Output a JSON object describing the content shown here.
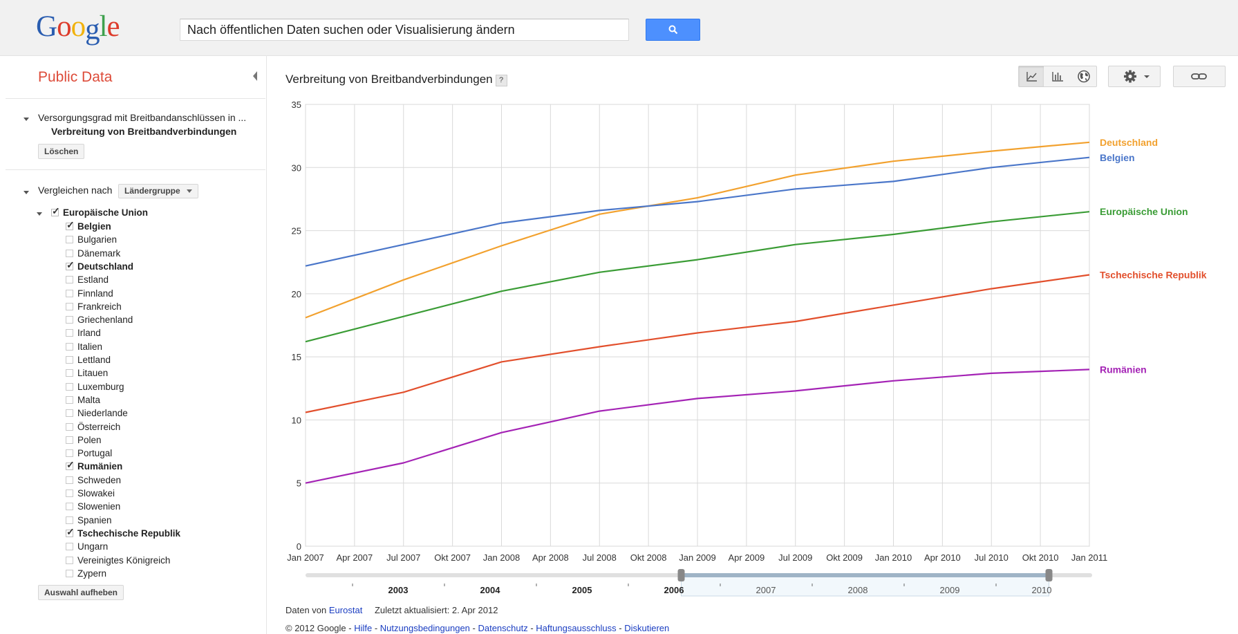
{
  "logo": {
    "letters": [
      {
        "ch": "G",
        "color": "#2a5db0"
      },
      {
        "ch": "o",
        "color": "#dd3c2c"
      },
      {
        "ch": "o",
        "color": "#f1b20c"
      },
      {
        "ch": "g",
        "color": "#2a5db0"
      },
      {
        "ch": "l",
        "color": "#3ea04d"
      },
      {
        "ch": "e",
        "color": "#dd3c2c"
      }
    ]
  },
  "search": {
    "value": "Nach öffentlichen Daten suchen oder Visualisierung ändern",
    "button_icon": "search-icon"
  },
  "sidebar": {
    "title": "Public Data",
    "dataset": {
      "line1": "Versorgungsgrad mit Breitbandanschlüssen in ...",
      "line2": "Verbreitung von Breitbandverbindungen",
      "clear_label": "Löschen"
    },
    "compare": {
      "label": "Vergleichen nach",
      "select_value": "Ländergruppe"
    },
    "group": {
      "label": "Europäische Union",
      "checked": true
    },
    "countries": [
      {
        "label": "Belgien",
        "checked": true
      },
      {
        "label": "Bulgarien",
        "checked": false
      },
      {
        "label": "Dänemark",
        "checked": false
      },
      {
        "label": "Deutschland",
        "checked": true
      },
      {
        "label": "Estland",
        "checked": false
      },
      {
        "label": "Finnland",
        "checked": false
      },
      {
        "label": "Frankreich",
        "checked": false
      },
      {
        "label": "Griechenland",
        "checked": false
      },
      {
        "label": "Irland",
        "checked": false
      },
      {
        "label": "Italien",
        "checked": false
      },
      {
        "label": "Lettland",
        "checked": false
      },
      {
        "label": "Litauen",
        "checked": false
      },
      {
        "label": "Luxemburg",
        "checked": false
      },
      {
        "label": "Malta",
        "checked": false
      },
      {
        "label": "Niederlande",
        "checked": false
      },
      {
        "label": "Österreich",
        "checked": false
      },
      {
        "label": "Polen",
        "checked": false
      },
      {
        "label": "Portugal",
        "checked": false
      },
      {
        "label": "Rumänien",
        "checked": true
      },
      {
        "label": "Schweden",
        "checked": false
      },
      {
        "label": "Slowakei",
        "checked": false
      },
      {
        "label": "Slowenien",
        "checked": false
      },
      {
        "label": "Spanien",
        "checked": false
      },
      {
        "label": "Tschechische Republik",
        "checked": true
      },
      {
        "label": "Ungarn",
        "checked": false
      },
      {
        "label": "Vereinigtes Königreich",
        "checked": false
      },
      {
        "label": "Zypern",
        "checked": false
      }
    ],
    "clear_selection_label": "Auswahl aufheben"
  },
  "main": {
    "title": "Verbreitung von Breitbandverbindungen",
    "help_label": "?",
    "toolbar": {
      "views": [
        "line-chart-icon",
        "bar-chart-icon",
        "map-globe-icon"
      ],
      "active_view": "line-chart-icon",
      "settings_icon": "gear-icon",
      "link_icon": "link-icon"
    }
  },
  "chart_data": {
    "type": "line",
    "title": "",
    "xlabel": "",
    "ylabel": "",
    "ylim": [
      0,
      35
    ],
    "yticks": [
      0,
      5,
      10,
      15,
      20,
      25,
      30,
      35
    ],
    "x": [
      "Jan 2007",
      "Apr 2007",
      "Jul 2007",
      "Okt 2007",
      "Jan 2008",
      "Apr 2008",
      "Jul 2008",
      "Okt 2008",
      "Jan 2009",
      "Apr 2009",
      "Jul 2009",
      "Okt 2009",
      "Jan 2010",
      "Apr 2010",
      "Jul 2010",
      "Okt 2010",
      "Jan 2011"
    ],
    "grid": true,
    "legend": "right",
    "series": [
      {
        "name": "Deutschland",
        "color": "#f2a12e",
        "values": [
          18.1,
          null,
          21.1,
          null,
          23.8,
          null,
          26.3,
          null,
          27.6,
          null,
          29.4,
          null,
          30.5,
          null,
          31.3,
          null,
          32.0
        ]
      },
      {
        "name": "Belgien",
        "color": "#4a76c9",
        "values": [
          22.2,
          null,
          23.9,
          null,
          25.6,
          null,
          26.6,
          null,
          27.3,
          null,
          28.3,
          null,
          28.9,
          null,
          30.0,
          null,
          30.8
        ]
      },
      {
        "name": "Europäische Union",
        "color": "#3a9c35",
        "values": [
          16.2,
          null,
          18.2,
          null,
          20.2,
          null,
          21.7,
          null,
          22.7,
          null,
          23.9,
          null,
          24.7,
          null,
          25.7,
          null,
          26.5
        ]
      },
      {
        "name": "Tschechische Republik",
        "color": "#e24f2c",
        "values": [
          10.6,
          null,
          12.2,
          null,
          14.6,
          null,
          15.8,
          null,
          16.9,
          null,
          17.8,
          null,
          19.1,
          null,
          20.4,
          null,
          21.5
        ]
      },
      {
        "name": "Rumänien",
        "color": "#a423b5",
        "values": [
          5.0,
          null,
          6.6,
          null,
          9.0,
          null,
          10.7,
          null,
          11.7,
          null,
          12.3,
          null,
          13.1,
          null,
          13.7,
          null,
          14.0
        ]
      }
    ]
  },
  "timeline": {
    "years": [
      "2003",
      "2004",
      "2005",
      "2006",
      "2007",
      "2008",
      "2009",
      "2010"
    ],
    "selected_from": "2007",
    "selected_to": "2010"
  },
  "footer": {
    "source_prefix": "Daten von",
    "source_link": "Eurostat",
    "updated": "Zuletzt aktualisiert: 2. Apr 2012",
    "copyright": "© 2012 Google -",
    "links": [
      "Hilfe",
      "Nutzungsbedingungen",
      "Datenschutz",
      "Haftungsausschluss",
      "Diskutieren"
    ]
  }
}
